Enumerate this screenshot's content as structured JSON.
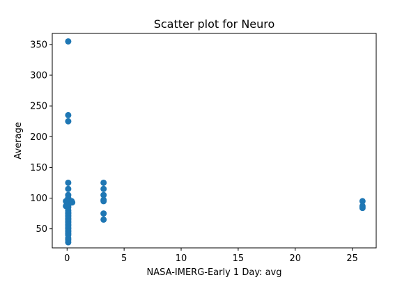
{
  "chart_data": {
    "type": "scatter",
    "title": "Scatter plot for Neuro",
    "xlabel": "NASA-IMERG-Early 1 Day: avg",
    "ylabel": "Average",
    "xlim": [
      -1.3,
      27.1
    ],
    "ylim": [
      19,
      368
    ],
    "xticks": [
      0,
      5,
      10,
      15,
      20,
      25
    ],
    "yticks": [
      50,
      100,
      150,
      200,
      250,
      300,
      350
    ],
    "grid": false,
    "marker_color": "#1f77b4",
    "points": [
      {
        "x": 0.1,
        "y": 355
      },
      {
        "x": 0.1,
        "y": 235
      },
      {
        "x": 0.1,
        "y": 225
      },
      {
        "x": 0.1,
        "y": 125
      },
      {
        "x": 0.1,
        "y": 115
      },
      {
        "x": 0.1,
        "y": 105
      },
      {
        "x": 0.1,
        "y": 100
      },
      {
        "x": 0.1,
        "y": 97
      },
      {
        "x": 0.1,
        "y": 95
      },
      {
        "x": 0.1,
        "y": 92
      },
      {
        "x": 0.1,
        "y": 90
      },
      {
        "x": 0.1,
        "y": 88
      },
      {
        "x": 0.1,
        "y": 85
      },
      {
        "x": 0.1,
        "y": 80
      },
      {
        "x": 0.1,
        "y": 77
      },
      {
        "x": 0.1,
        "y": 75
      },
      {
        "x": 0.1,
        "y": 72
      },
      {
        "x": 0.1,
        "y": 70
      },
      {
        "x": 0.1,
        "y": 67
      },
      {
        "x": 0.1,
        "y": 65
      },
      {
        "x": 0.1,
        "y": 62
      },
      {
        "x": 0.1,
        "y": 60
      },
      {
        "x": 0.1,
        "y": 57
      },
      {
        "x": 0.1,
        "y": 55
      },
      {
        "x": 0.1,
        "y": 52
      },
      {
        "x": 0.1,
        "y": 50
      },
      {
        "x": 0.1,
        "y": 47
      },
      {
        "x": 0.1,
        "y": 45
      },
      {
        "x": 0.1,
        "y": 42
      },
      {
        "x": 0.1,
        "y": 40
      },
      {
        "x": 0.1,
        "y": 35
      },
      {
        "x": 0.1,
        "y": 32
      },
      {
        "x": 0.1,
        "y": 28
      },
      {
        "x": -0.1,
        "y": 95
      },
      {
        "x": -0.1,
        "y": 87
      },
      {
        "x": 0.3,
        "y": 95
      },
      {
        "x": 0.4,
        "y": 95
      },
      {
        "x": 0.45,
        "y": 93
      },
      {
        "x": 3.2,
        "y": 125
      },
      {
        "x": 3.2,
        "y": 115
      },
      {
        "x": 3.2,
        "y": 105
      },
      {
        "x": 3.2,
        "y": 97
      },
      {
        "x": 3.2,
        "y": 95
      },
      {
        "x": 3.2,
        "y": 75
      },
      {
        "x": 3.2,
        "y": 65
      },
      {
        "x": 25.9,
        "y": 95
      },
      {
        "x": 25.9,
        "y": 87
      },
      {
        "x": 25.9,
        "y": 84
      }
    ]
  }
}
